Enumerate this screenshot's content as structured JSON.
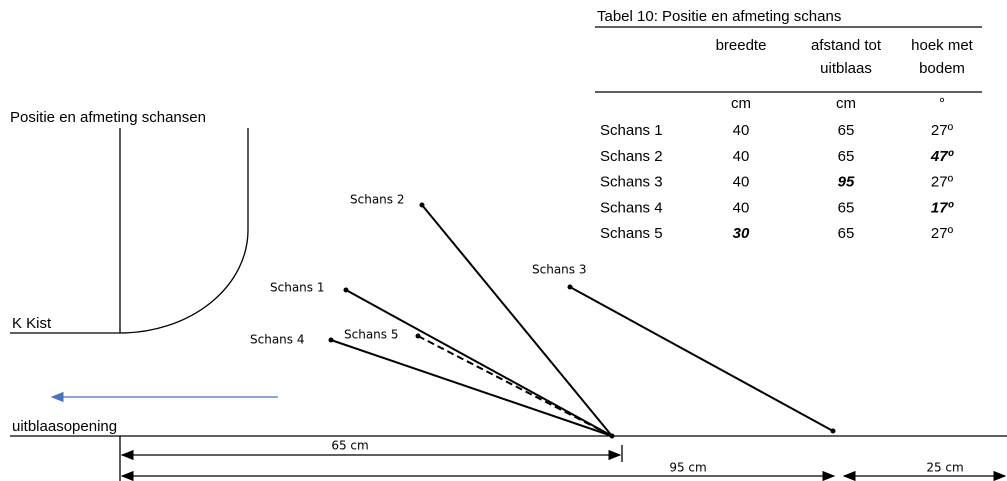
{
  "title": "Positie en afmeting schansen",
  "labels": {
    "kist": "K Kist",
    "outlet": "uitblaasopening",
    "ramps": [
      "Schans 1",
      "Schans 2",
      "Schans 3",
      "Schans 4",
      "Schans 5"
    ],
    "dimensions": [
      "65 cm",
      "95 cm",
      "25 cm"
    ]
  },
  "table": {
    "caption": "Tabel 10: Positie en afmeting schans",
    "headers": [
      [
        "breedte"
      ],
      [
        "afstand tot",
        "uitblaas"
      ],
      [
        "hoek met",
        "bodem"
      ]
    ],
    "units": [
      "cm",
      "cm",
      "°"
    ],
    "rows": [
      [
        "Schans 1",
        "40",
        "65",
        "27º"
      ],
      [
        "Schans 2",
        "40",
        "65",
        "47º"
      ],
      [
        "Schans 3",
        "40",
        "95",
        "27º"
      ],
      [
        "Schans 4",
        "40",
        "65",
        "17º"
      ],
      [
        "Schans 5",
        "30",
        "65",
        "27º"
      ]
    ]
  }
}
